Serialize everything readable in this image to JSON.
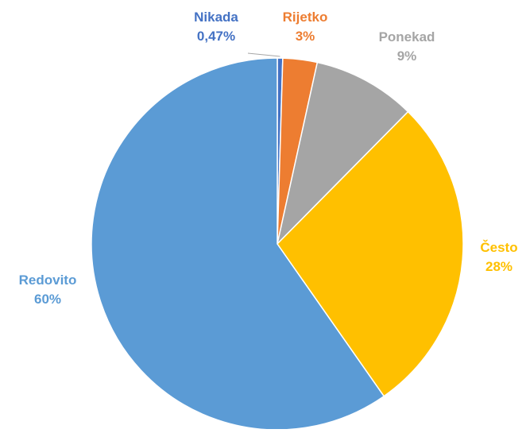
{
  "chart_data": {
    "type": "pie",
    "slices": [
      {
        "category": "Nikada",
        "value": 0.47,
        "value_label": "0,47%",
        "color": "#4472C4"
      },
      {
        "category": "Rijetko",
        "value": 3,
        "value_label": "3%",
        "color": "#ED7D31"
      },
      {
        "category": "Ponekad",
        "value": 9,
        "value_label": "9%",
        "color": "#A5A5A5"
      },
      {
        "category": "Često",
        "value": 28,
        "value_label": "28%",
        "color": "#FFC000"
      },
      {
        "category": "Redovito",
        "value": 60,
        "value_label": "60%",
        "color": "#5B9BD5"
      }
    ],
    "start_angle_deg": 0,
    "direction": "clockwise",
    "legend": "none",
    "data_labels": "outside"
  }
}
